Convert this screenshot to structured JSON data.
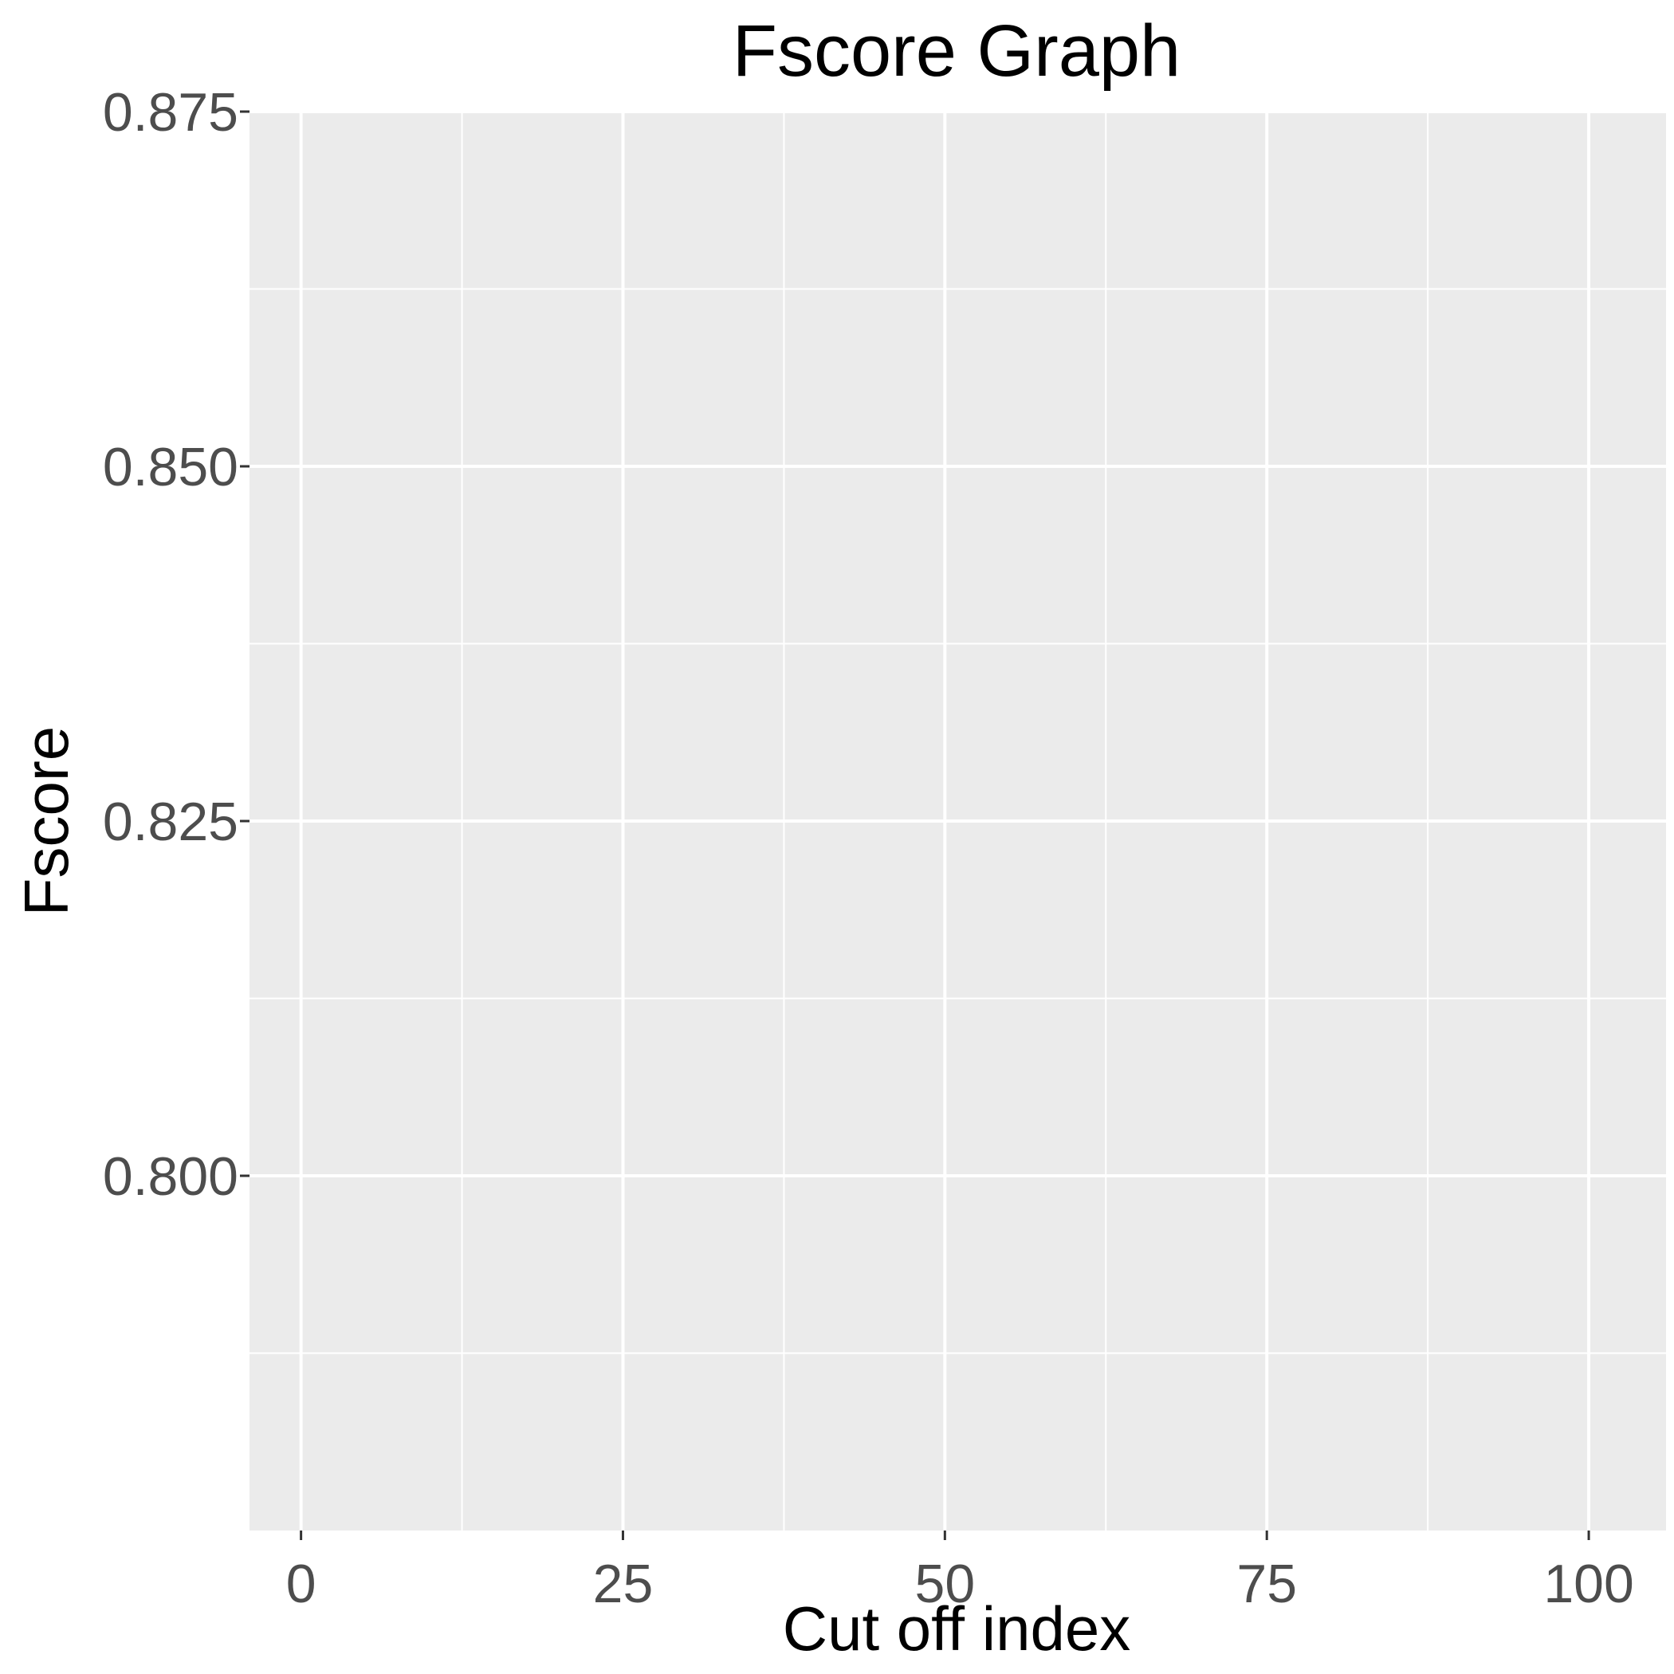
{
  "chart_data": {
    "type": "line",
    "title": "Fscore Graph",
    "xlabel": "Cut off index",
    "ylabel": "Fscore",
    "xlim": [
      -4,
      106
    ],
    "ylim": [
      0.775,
      0.875
    ],
    "x_ticks": [
      0,
      25,
      50,
      75,
      100
    ],
    "x_tick_labels": [
      "0",
      "25",
      "50",
      "75",
      "100"
    ],
    "x_minor_ticks": [
      12.5,
      37.5,
      62.5,
      87.5
    ],
    "y_ticks": [
      0.8,
      0.825,
      0.85,
      0.875
    ],
    "y_tick_labels": [
      "0.800",
      "0.825",
      "0.850",
      "0.875"
    ],
    "y_minor_ticks": [
      0.7875,
      0.8125,
      0.8375,
      0.8625
    ],
    "series": [],
    "grid": true,
    "panel_background": "#ebebeb",
    "grid_color": "#ffffff",
    "legend": "none"
  }
}
